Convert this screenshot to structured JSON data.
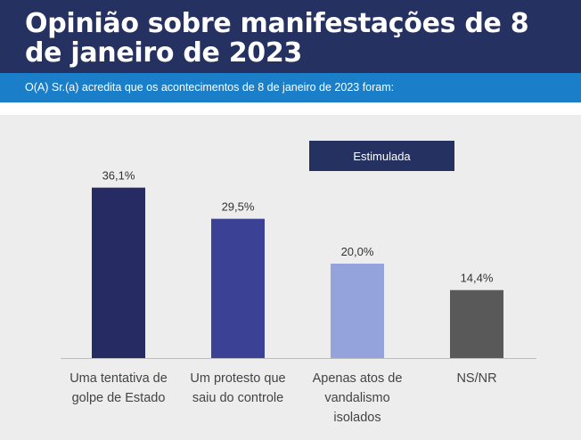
{
  "header": {
    "title": "Opinião sobre manifestações de 8 de janeiro de 2023",
    "subtitle": "O(A) Sr.(a) acredita que os acontecimentos de 8 de janeiro de 2023 foram:"
  },
  "colors": {
    "header_bg": "#243161",
    "subbar_bg": "#1a7fc8",
    "panel_bg": "#ededed"
  },
  "chart_data": {
    "type": "bar",
    "title": "",
    "legend": "Estimulada",
    "categories": [
      "Uma tentativa de golpe de Estado",
      "Um protesto que saiu do controle",
      "Apenas atos de vandalismo isolados",
      "NS/NR"
    ],
    "values": [
      36.1,
      29.5,
      20.0,
      14.4
    ],
    "value_labels": [
      "36,1%",
      "29,5%",
      "20,0%",
      "14,4%"
    ],
    "bar_colors": [
      "#262c63",
      "#3b4296",
      "#95a3dd",
      "#595959"
    ],
    "ylim": [
      0,
      40
    ],
    "grid": false
  }
}
